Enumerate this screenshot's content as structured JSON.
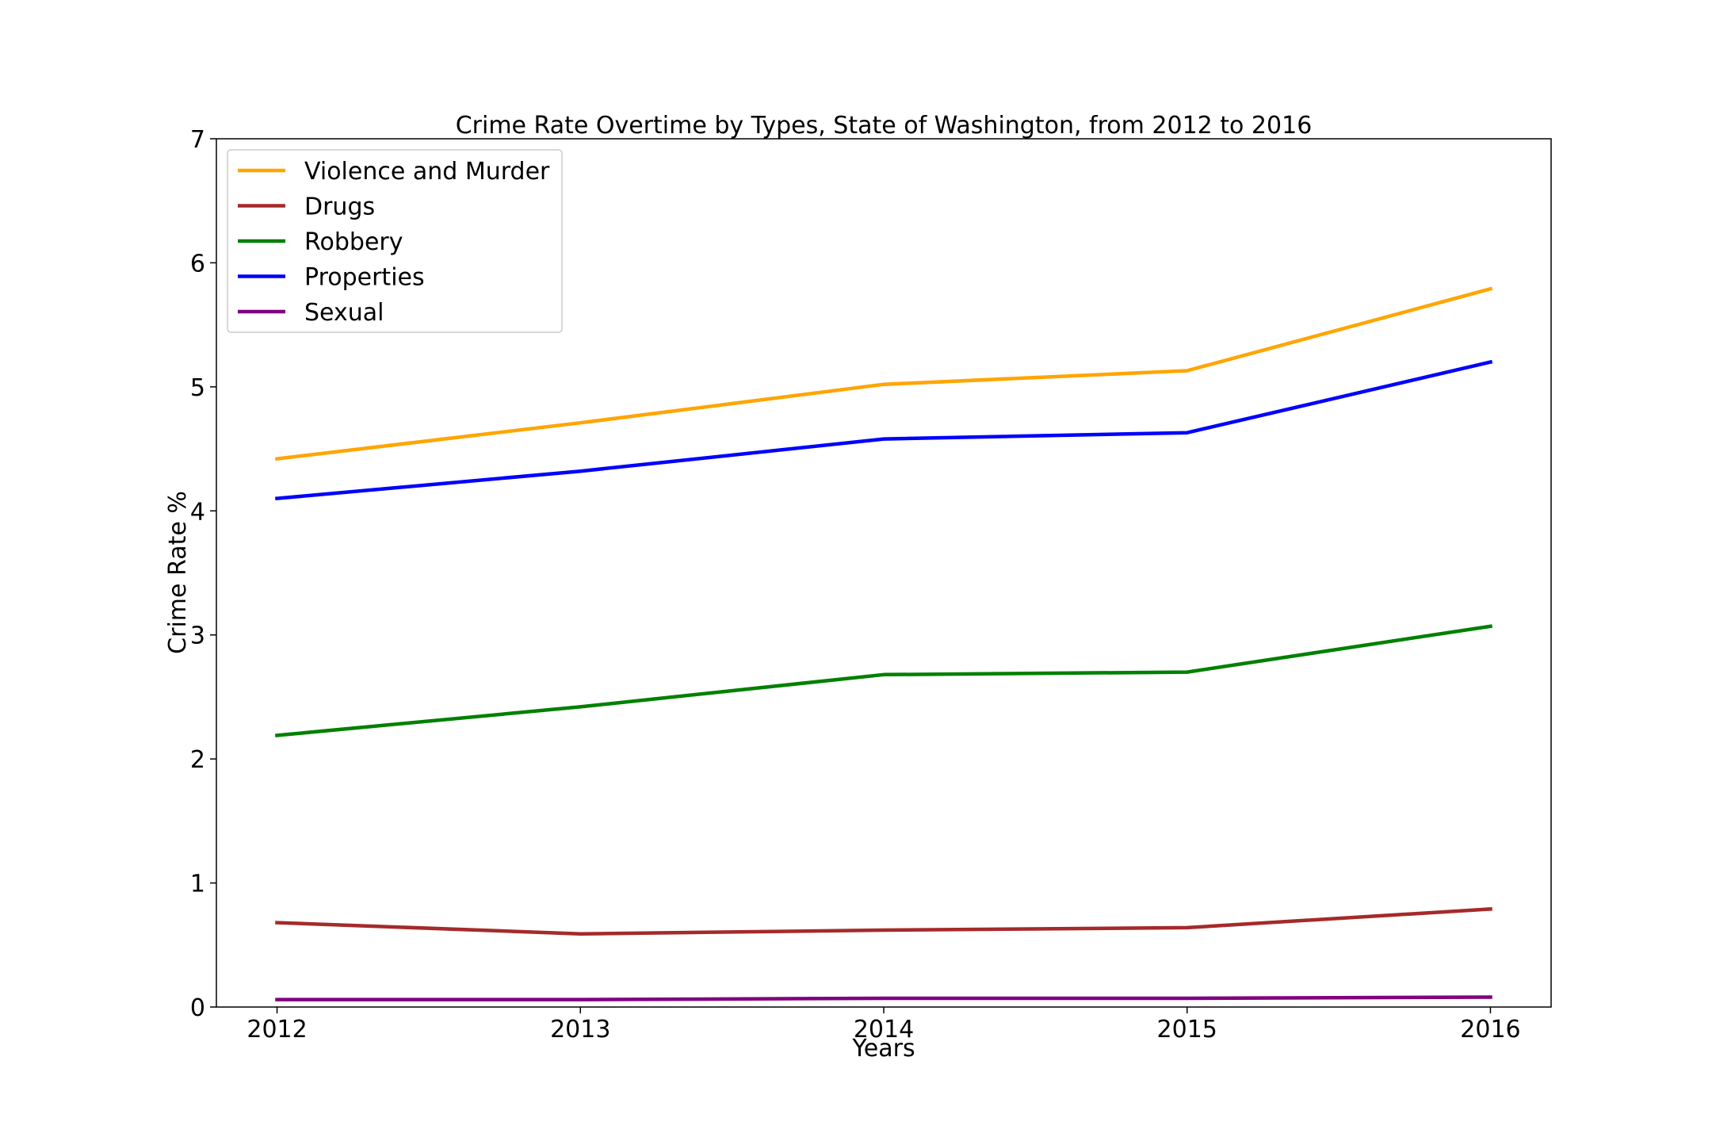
{
  "chart_data": {
    "type": "line",
    "title": "Crime Rate Overtime by Types, State of Washington, from 2012 to 2016",
    "xlabel": "Years",
    "ylabel": "Crime Rate %",
    "x": [
      2012,
      2013,
      2014,
      2015,
      2016
    ],
    "x_tick_labels": [
      "2012",
      "2013",
      "2014",
      "2015",
      "2016"
    ],
    "xlim": [
      2011.8,
      2016.2
    ],
    "ylim": [
      0,
      7
    ],
    "y_ticks": [
      0,
      1,
      2,
      3,
      4,
      5,
      6,
      7
    ],
    "y_tick_labels": [
      "0",
      "1",
      "2",
      "3",
      "4",
      "5",
      "6",
      "7"
    ],
    "grid": false,
    "legend_position": "top-left",
    "series": [
      {
        "name": "Violence and Murder",
        "color": "#ffa500",
        "values": [
          4.42,
          4.71,
          5.02,
          5.13,
          5.79
        ]
      },
      {
        "name": "Drugs",
        "color": "#a52a2a",
        "values": [
          0.68,
          0.59,
          0.62,
          0.64,
          0.79
        ]
      },
      {
        "name": "Robbery",
        "color": "#008000",
        "values": [
          2.19,
          2.42,
          2.68,
          2.7,
          3.07
        ]
      },
      {
        "name": "Properties",
        "color": "#0000ff",
        "values": [
          4.1,
          4.32,
          4.58,
          4.63,
          5.2
        ]
      },
      {
        "name": "Sexual",
        "color": "#800080",
        "values": [
          0.06,
          0.06,
          0.07,
          0.07,
          0.08
        ]
      }
    ]
  }
}
